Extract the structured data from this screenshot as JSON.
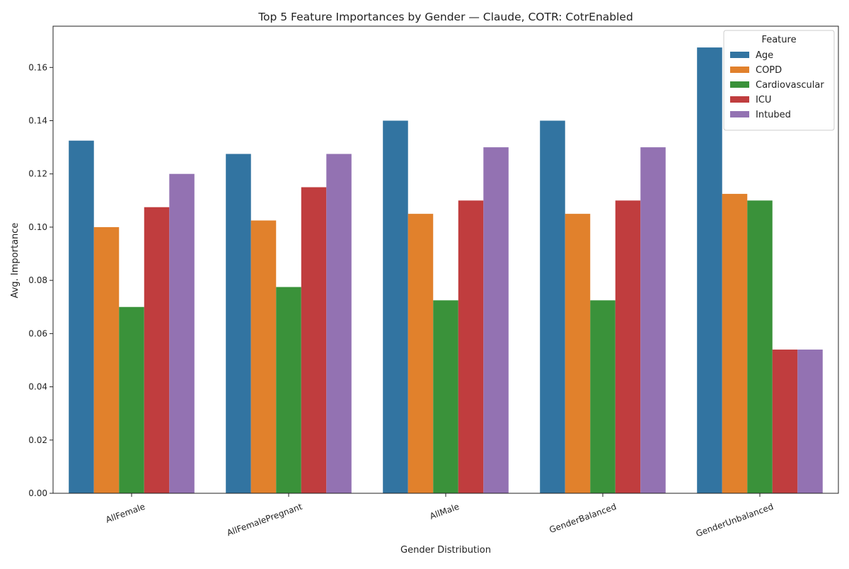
{
  "chart_data": {
    "type": "bar",
    "title": "Top 5 Feature Importances by Gender — Claude, COTR: CotrEnabled",
    "xlabel": "Gender Distribution",
    "ylabel": "Avg. Importance",
    "ylim": [
      0,
      0.1755
    ],
    "yticks": [
      "0.00",
      "0.02",
      "0.04",
      "0.06",
      "0.08",
      "0.10",
      "0.12",
      "0.14",
      "0.16"
    ],
    "grid": false,
    "legend": {
      "title": "Feature",
      "placement": "top-right"
    },
    "categories": [
      "AllFemale",
      "AllFemalePregnant",
      "AllMale",
      "GenderBalanced",
      "GenderUnbalanced"
    ],
    "series": [
      {
        "name": "Age",
        "color": "#3274a1",
        "values": [
          0.1325,
          0.1275,
          0.14,
          0.14,
          0.1675
        ]
      },
      {
        "name": "COPD",
        "color": "#e1812c",
        "values": [
          0.1,
          0.1025,
          0.105,
          0.105,
          0.1125
        ]
      },
      {
        "name": "Cardiovascular",
        "color": "#3a923a",
        "values": [
          0.07,
          0.0775,
          0.0725,
          0.0725,
          0.11
        ]
      },
      {
        "name": "ICU",
        "color": "#c03d3e",
        "values": [
          0.1075,
          0.115,
          0.11,
          0.11,
          0.054
        ]
      },
      {
        "name": "Intubed",
        "color": "#9372b2",
        "values": [
          0.12,
          0.1275,
          0.13,
          0.13,
          0.054
        ]
      }
    ]
  }
}
